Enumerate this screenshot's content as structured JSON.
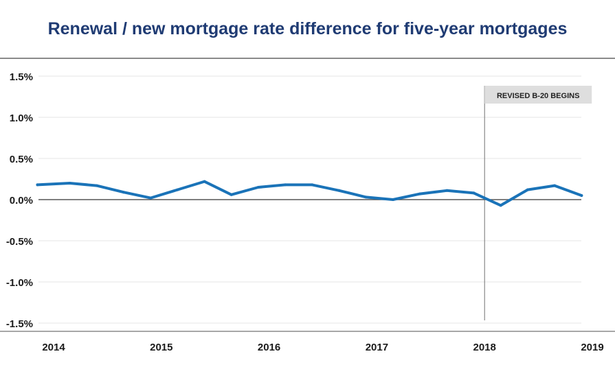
{
  "chart_data": {
    "type": "line",
    "title": "Renewal / new mortgage rate difference for five-year mortgages",
    "xlabel": "",
    "ylabel": "",
    "ylim": [
      -1.5,
      1.5
    ],
    "yticks": [
      "1.5%",
      "1.0%",
      "0.5%",
      "0.0%",
      "-0.5%",
      "-1.0%",
      "-1.5%"
    ],
    "ytick_values": [
      1.5,
      1.0,
      0.5,
      0.0,
      -0.5,
      -1.0,
      -1.5
    ],
    "xlim": [
      2014,
      2019
    ],
    "xticks": [
      "2014",
      "2015",
      "2016",
      "2017",
      "2018",
      "2019"
    ],
    "xtick_values": [
      2014,
      2015,
      2016,
      2017,
      2018,
      2019
    ],
    "series": [
      {
        "name": "Rate difference",
        "color": "#1a73b8",
        "x": [
          2013.85,
          2014.15,
          2014.4,
          2014.65,
          2014.9,
          2015.15,
          2015.4,
          2015.65,
          2015.9,
          2016.15,
          2016.4,
          2016.65,
          2016.9,
          2017.15,
          2017.4,
          2017.65,
          2017.9,
          2018.15,
          2018.4,
          2018.65,
          2018.9
        ],
        "values": [
          0.18,
          0.2,
          0.17,
          0.09,
          0.02,
          0.12,
          0.22,
          0.06,
          0.15,
          0.18,
          0.18,
          0.11,
          0.03,
          0.0,
          0.07,
          0.11,
          0.08,
          -0.07,
          0.12,
          0.17,
          0.05
        ]
      }
    ],
    "annotations": [
      {
        "label": "REVISED B-20 BEGINS",
        "x": 2018.0
      }
    ]
  }
}
